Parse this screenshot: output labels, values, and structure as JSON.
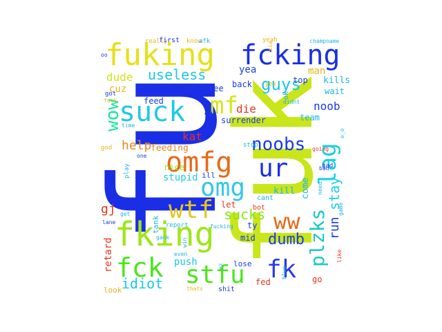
{
  "word_cloud": {
    "words": [
      {
        "text": "fu",
        "color": "#1a2ee6"
      },
      {
        "text": "fuk",
        "color": "#c8e61a"
      },
      {
        "text": "fuking",
        "color": "#e6e01a"
      },
      {
        "text": "fcking",
        "color": "#1a2ee6"
      },
      {
        "text": "fking",
        "color": "#9ee61a"
      },
      {
        "text": "suck",
        "color": "#22c8e6"
      },
      {
        "text": "omfg",
        "color": "#e66a1a"
      },
      {
        "text": "omg",
        "color": "#33c8e6"
      },
      {
        "text": "wtf",
        "color": "#e6c81a"
      },
      {
        "text": "stfu",
        "color": "#4ae61a"
      },
      {
        "text": "fck",
        "color": "#4ae61a"
      },
      {
        "text": "mf",
        "color": "#d4e61a"
      },
      {
        "text": "lag",
        "color": "#1ad0e6"
      },
      {
        "text": "ur",
        "color": "#1a2ee6"
      },
      {
        "text": "fk",
        "color": "#2a3ae6"
      },
      {
        "text": "plzks",
        "color": "#1ac8c8"
      },
      {
        "text": "ww",
        "color": "#e66a1a"
      },
      {
        "text": "wow",
        "color": "#1ae69a"
      },
      {
        "text": "noobs",
        "color": "#1a3ae6"
      },
      {
        "text": "guys",
        "color": "#1ac8e6"
      },
      {
        "text": "useless",
        "color": "#1ac8e6"
      },
      {
        "text": "dumb",
        "color": "#1a3ae6"
      },
      {
        "text": "sucks",
        "color": "#8ae61a"
      },
      {
        "text": "stay",
        "color": "#1ad0e6"
      },
      {
        "text": "run",
        "color": "#1a3ae6"
      },
      {
        "text": "idiot",
        "color": "#1ac8e6"
      },
      {
        "text": "help",
        "color": "#e6861a"
      },
      {
        "text": "noob",
        "color": "#1a3ae6"
      },
      {
        "text": "dude",
        "color": "#d0e61a"
      },
      {
        "text": "yea",
        "color": "#1a3ae6"
      },
      {
        "text": "man",
        "color": "#e6b41a"
      },
      {
        "text": "die",
        "color": "#e6341a"
      },
      {
        "text": "kat",
        "color": "#e6341a"
      },
      {
        "text": "gj",
        "color": "#e6341a"
      },
      {
        "text": "retard",
        "color": "#e6341a"
      },
      {
        "text": "push",
        "color": "#1ac8e6"
      },
      {
        "text": "stupid",
        "color": "#1ac8e6"
      },
      {
        "text": "feeding",
        "color": "#e6861a"
      },
      {
        "text": "surrender",
        "color": "#1a3ae6"
      },
      {
        "text": "kills",
        "color": "#1ab4e6"
      },
      {
        "text": "cuz",
        "color": "#e6b41a"
      },
      {
        "text": "come",
        "color": "#1ab4e6"
      },
      {
        "text": "kill",
        "color": "#1ab4e6"
      },
      {
        "text": "feed",
        "color": "#1a3ae6"
      },
      {
        "text": "see",
        "color": "#1a3ae6"
      },
      {
        "text": "back",
        "color": "#1a3ae6"
      },
      {
        "text": "wait",
        "color": "#1ab4e6"
      },
      {
        "text": "top",
        "color": "#1a3ae6"
      },
      {
        "text": "team",
        "color": "#1ab4e6"
      },
      {
        "text": "go",
        "color": "#e6341a"
      },
      {
        "text": "fed",
        "color": "#e6341a"
      },
      {
        "text": "lose",
        "color": "#1a3ae6"
      },
      {
        "text": "mid",
        "color": "#1a3ae6"
      },
      {
        "text": "let",
        "color": "#e6341a"
      },
      {
        "text": "ty",
        "color": "#1a3ae6"
      },
      {
        "text": "bot",
        "color": "#e6341a"
      },
      {
        "text": "ill",
        "color": "#1a3ae6"
      },
      {
        "text": "cant",
        "color": "#1ab4e6"
      },
      {
        "text": "nice",
        "color": "#8ae61a"
      },
      {
        "text": "look",
        "color": "#e6b41a"
      },
      {
        "text": "tank",
        "color": "#1ab4e6"
      },
      {
        "text": "shit",
        "color": "#1a3ae6"
      },
      {
        "text": "ok",
        "color": "#1ab4e6"
      },
      {
        "text": "yes",
        "color": "#e6b41a"
      },
      {
        "text": "gg",
        "color": "#1a3ae6"
      },
      {
        "text": "stop",
        "color": "#1ab4e6"
      },
      {
        "text": "god",
        "color": "#e6b41a"
      },
      {
        "text": "really",
        "color": "#e6b41a"
      },
      {
        "text": "first",
        "color": "#1a3ae6"
      },
      {
        "text": "know",
        "color": "#e6b41a"
      },
      {
        "text": "afk",
        "color": "#1ab4e6"
      },
      {
        "text": "yeah",
        "color": "#e6b41a"
      },
      {
        "text": "champname",
        "color": "#1ab4e6"
      },
      {
        "text": "got",
        "color": "#1a3ae6"
      },
      {
        "text": "fuck",
        "color": "#e6b41a"
      },
      {
        "text": "time",
        "color": "#1ab4e6"
      },
      {
        "text": "play",
        "color": "#1ab4e6"
      },
      {
        "text": "one",
        "color": "#1a3ae6"
      },
      {
        "text": "going",
        "color": "#e6341a"
      },
      {
        "text": "had",
        "color": "#1a3ae6"
      },
      {
        "text": "report",
        "color": "#1ab4e6"
      },
      {
        "text": "lane",
        "color": "#1a3ae6"
      },
      {
        "text": "get",
        "color": "#1ab4e6"
      },
      {
        "text": "gank",
        "color": "#1ab4e6"
      },
      {
        "text": "fucking",
        "color": "#1ab4e6"
      },
      {
        "text": "win",
        "color": "#1ab4e6"
      },
      {
        "text": "even",
        "color": "#1ab4e6"
      },
      {
        "text": "game",
        "color": "#1ab4e6"
      },
      {
        "text": "need",
        "color": "#1ab4e6"
      },
      {
        "text": "blue",
        "color": "#1ab4e6"
      },
      {
        "text": "like",
        "color": "#e6341a"
      },
      {
        "text": "thats",
        "color": "#e6b41a"
      },
      {
        "text": "oo",
        "color": "#1a3ae6"
      },
      {
        "text": "mia",
        "color": "#e6b41a"
      },
      {
        "text": "didnt",
        "color": "#1ab4e6"
      },
      {
        "text": "o_o",
        "color": "#1ab4e6"
      },
      {
        "text": "bad",
        "color": "#1a3ae6"
      },
      {
        "text": "ez",
        "color": "#1ab4e6"
      }
    ]
  }
}
